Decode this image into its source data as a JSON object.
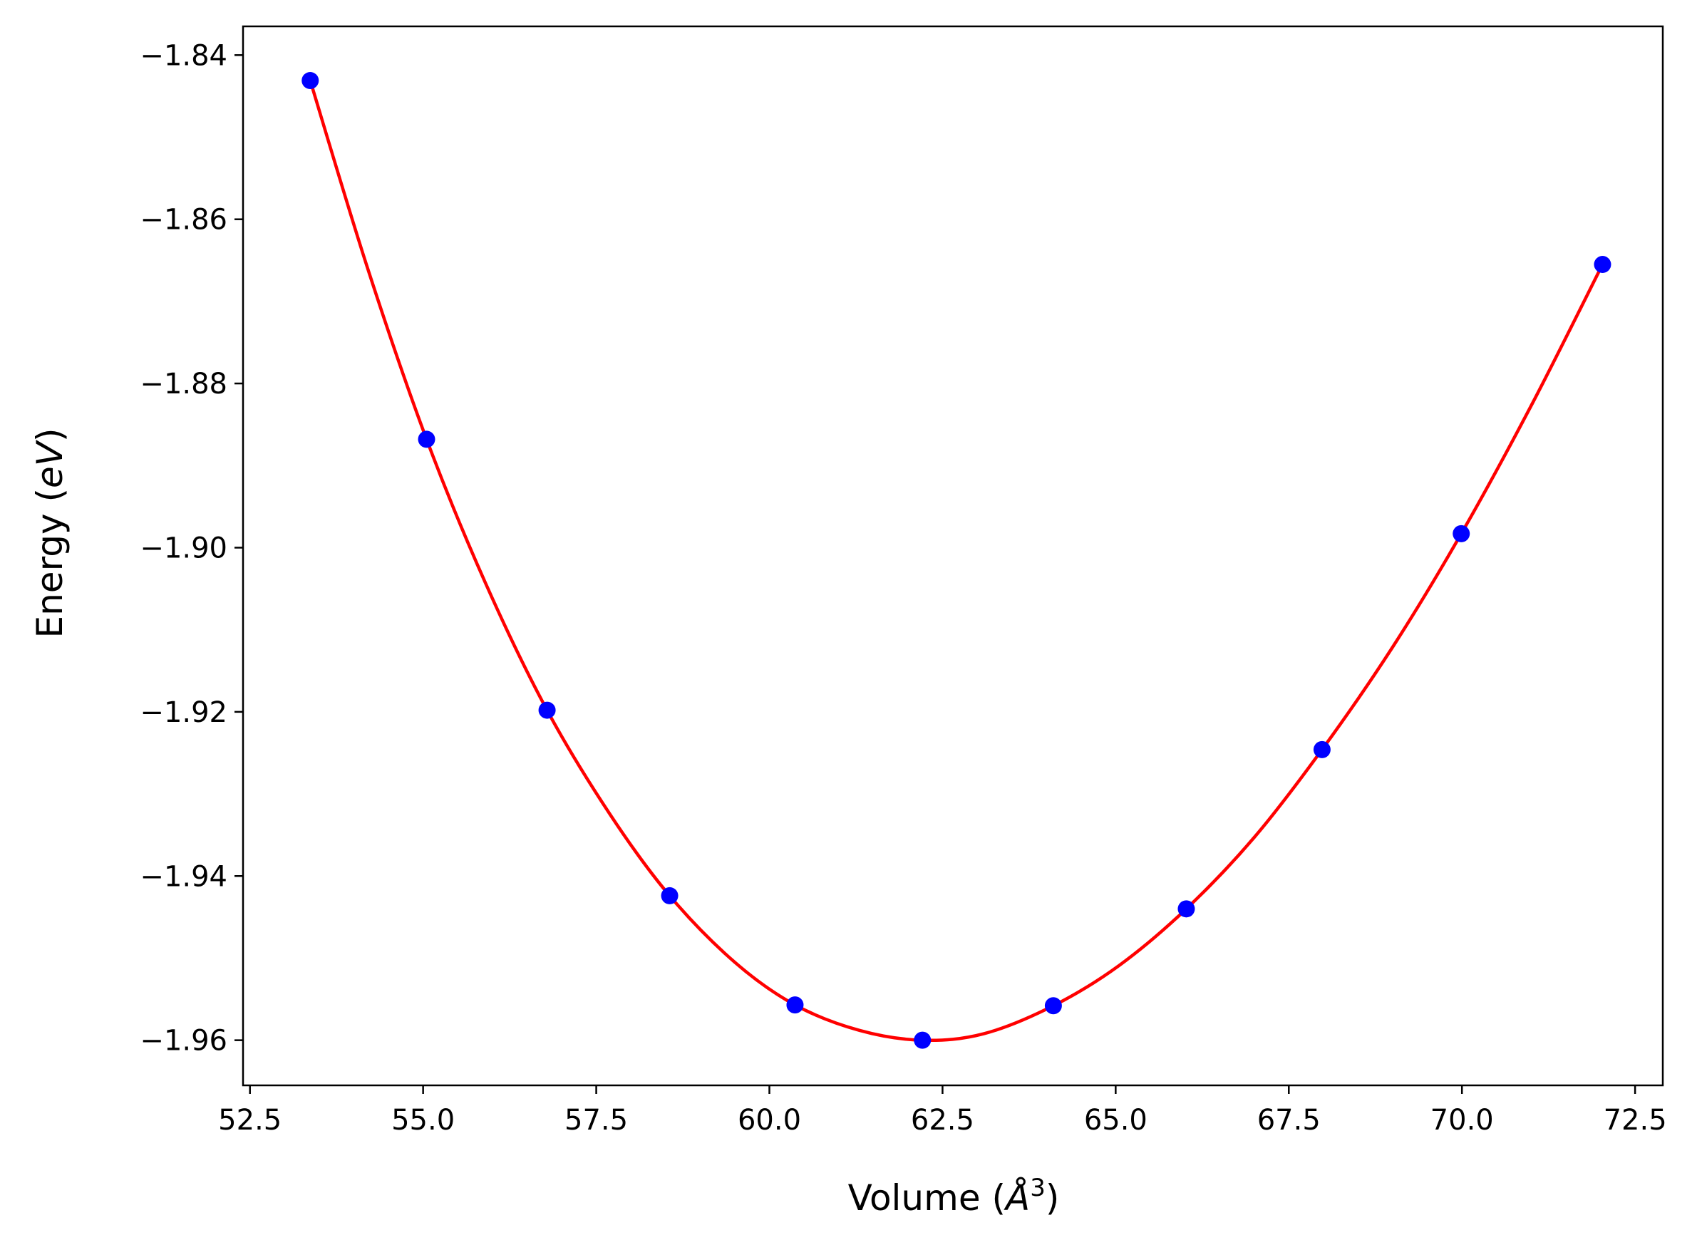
{
  "chart_data": {
    "type": "scatter",
    "title": "",
    "xlabel": {
      "prefix": "Volume (",
      "symbol": "Å",
      "superscript": "3",
      "suffix": ")"
    },
    "ylabel": {
      "prefix": "Energy (",
      "italic": "eV",
      "suffix": ")"
    },
    "xlim": [
      52.4,
      72.9
    ],
    "ylim": [
      -1.9655,
      -1.8365
    ],
    "xticks": [
      52.5,
      55.0,
      57.5,
      60.0,
      62.5,
      65.0,
      67.5,
      70.0,
      72.5
    ],
    "xtick_labels": [
      "52.5",
      "55.0",
      "57.5",
      "60.0",
      "62.5",
      "65.0",
      "67.5",
      "70.0",
      "72.5"
    ],
    "yticks": [
      -1.84,
      -1.86,
      -1.88,
      -1.9,
      -1.92,
      -1.94,
      -1.96
    ],
    "ytick_labels": [
      "−1.84",
      "−1.86",
      "−1.88",
      "−1.90",
      "−1.92",
      "−1.94",
      "−1.96"
    ],
    "grid": false,
    "series": [
      {
        "kind": "points",
        "color": "#0000ff",
        "x": [
          53.37,
          55.05,
          56.79,
          58.56,
          60.37,
          62.21,
          64.1,
          66.02,
          67.98,
          69.99,
          72.03
        ],
        "y": [
          -1.8431,
          -1.8868,
          -1.9198,
          -1.9424,
          -1.9557,
          -1.96,
          -1.9558,
          -1.944,
          -1.9246,
          -1.8983,
          -1.8655
        ]
      },
      {
        "kind": "fit-curve",
        "color": "#ff0000",
        "x": [
          53.37,
          54.2,
          55.05,
          55.9,
          56.79,
          57.7,
          58.56,
          59.5,
          60.37,
          61.3,
          62.21,
          63.1,
          64.1,
          65.05,
          66.02,
          67.0,
          67.98,
          69.0,
          69.99,
          71.0,
          72.03
        ],
        "y": [
          -1.8431,
          -1.866,
          -1.8868,
          -1.9043,
          -1.9198,
          -1.9325,
          -1.9424,
          -1.9505,
          -1.9557,
          -1.9588,
          -1.96,
          -1.9592,
          -1.9558,
          -1.9509,
          -1.944,
          -1.9353,
          -1.9246,
          -1.9121,
          -1.8983,
          -1.8827,
          -1.8655
        ]
      }
    ]
  }
}
